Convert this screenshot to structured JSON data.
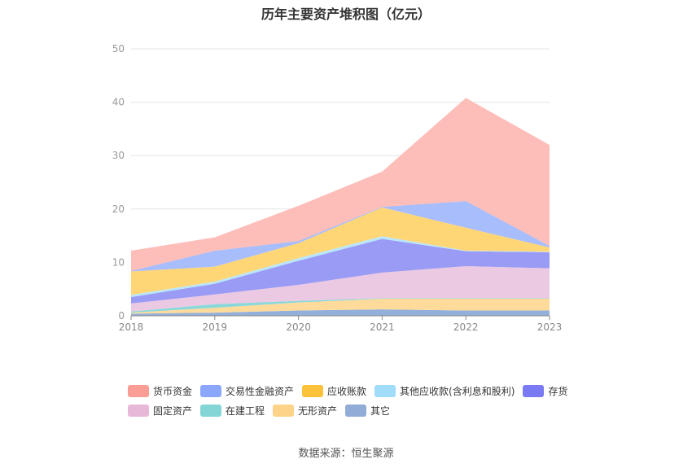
{
  "title": "历年主要资产堆积图（亿元）",
  "source": "数据来源：恒生聚源",
  "chart_data": {
    "type": "area",
    "stacked": true,
    "title": "历年主要资产堆积图（亿元）",
    "x": [
      "2018",
      "2019",
      "2020",
      "2021",
      "2022",
      "2023"
    ],
    "ylim": [
      0,
      50
    ],
    "yticks": [
      0,
      10,
      20,
      30,
      40,
      50
    ],
    "grid": true,
    "legend_position": "bottom",
    "series": [
      {
        "name": "其它",
        "color": "#93b0da",
        "values": [
          0.4,
          0.6,
          1.0,
          1.2,
          1.0,
          1.0
        ]
      },
      {
        "name": "无形资产",
        "color": "#fedb9a",
        "values": [
          0.2,
          0.9,
          1.5,
          2.0,
          2.2,
          2.2
        ]
      },
      {
        "name": "在建工程",
        "color": "#8bd8da",
        "values": [
          0.2,
          0.7,
          0.3,
          0.1,
          0.1,
          0.1
        ]
      },
      {
        "name": "固定资产",
        "color": "#ecc9e2",
        "values": [
          1.5,
          1.8,
          3.0,
          4.8,
          6.0,
          5.6
        ]
      },
      {
        "name": "存货",
        "color": "#9a9bf5",
        "values": [
          1.2,
          2.0,
          4.5,
          6.3,
          2.8,
          3.0
        ]
      },
      {
        "name": "其他应收款(含利息和股利)",
        "color": "#b9e6fb",
        "values": [
          0.4,
          0.4,
          0.5,
          0.5,
          0.1,
          0.1
        ]
      },
      {
        "name": "应收账款",
        "color": "#ffd676",
        "values": [
          4.4,
          2.8,
          2.8,
          5.4,
          4.3,
          0.8
        ]
      },
      {
        "name": "交易性金融资产",
        "color": "#a8bdfb",
        "values": [
          0.1,
          3.0,
          0.4,
          0.1,
          5.0,
          0.3
        ]
      },
      {
        "name": "货币资金",
        "color": "#fdbdb8",
        "values": [
          3.8,
          2.5,
          6.6,
          6.6,
          19.3,
          18.9
        ]
      }
    ]
  },
  "legend": {
    "row1": [
      {
        "name": "货币资金",
        "color": "#fa9d95"
      },
      {
        "name": "交易性金融资产",
        "color": "#8aa7fb"
      },
      {
        "name": "应收账款",
        "color": "#fdc23c"
      },
      {
        "name": "其他应收款(含利息和股利)",
        "color": "#a1dcfa"
      },
      {
        "name": "存货",
        "color": "#7a7bf2"
      }
    ],
    "row2": [
      {
        "name": "固定资产",
        "color": "#e8b8d8"
      },
      {
        "name": "在建工程",
        "color": "#84d6d6"
      },
      {
        "name": "无形资产",
        "color": "#fdd38a"
      },
      {
        "name": "其它",
        "color": "#91acd6"
      }
    ]
  }
}
